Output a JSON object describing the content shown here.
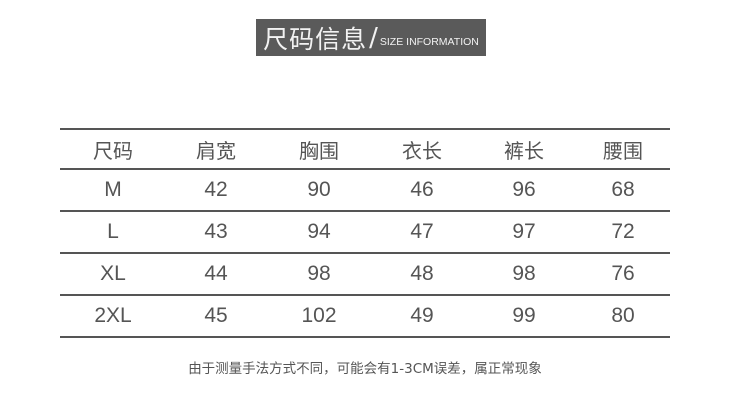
{
  "banner": {
    "title_cn": "尺码信息",
    "separator": "/",
    "title_en": "SIZE INFORMATION",
    "background": "#5a5a5a"
  },
  "table": {
    "headers": [
      "尺码",
      "肩宽",
      "胸围",
      "衣长",
      "裤长",
      "腰围"
    ],
    "rows": [
      [
        "M",
        "42",
        "90",
        "46",
        "96",
        "68"
      ],
      [
        "L",
        "43",
        "94",
        "47",
        "97",
        "72"
      ],
      [
        "XL",
        "44",
        "98",
        "48",
        "98",
        "76"
      ],
      [
        "2XL",
        "45",
        "102",
        "49",
        "99",
        "80"
      ]
    ]
  },
  "note": "由于测量手法方式不同，可能会有1-3CM误差，属正常现象"
}
